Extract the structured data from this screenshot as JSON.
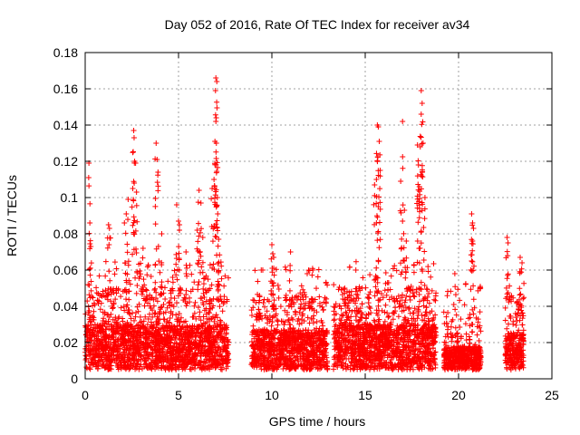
{
  "chart_data": {
    "type": "scatter",
    "title": "Day 052 of 2016, Rate Of TEC Index for receiver av34",
    "xlabel": "GPS time / hours",
    "ylabel": "ROTI / TECUs",
    "xlim": [
      0,
      25
    ],
    "ylim": [
      0,
      0.18
    ],
    "xticks": [
      0,
      5,
      10,
      15,
      20,
      25
    ],
    "xtick_labels": [
      "0",
      "5",
      "10",
      "15",
      "20",
      "25"
    ],
    "yticks": [
      0,
      0.02,
      0.04,
      0.06,
      0.08,
      0.1,
      0.12,
      0.14,
      0.16,
      0.18
    ],
    "ytick_labels": [
      "0",
      "0.02",
      "0.04",
      "0.06",
      "0.08",
      "0.1",
      "0.12",
      "0.14",
      "0.16",
      "0.18"
    ],
    "grid": true,
    "marker": "+",
    "color": "#ff0000",
    "segments": [
      {
        "x_start": 0.0,
        "x_end": 7.7,
        "base_max": 0.03
      },
      {
        "x_start": 8.9,
        "x_end": 13.0,
        "base_max": 0.027
      },
      {
        "x_start": 13.3,
        "x_end": 18.8,
        "base_max": 0.03
      },
      {
        "x_start": 19.2,
        "x_end": 21.2,
        "base_max": 0.018
      },
      {
        "x_start": 22.5,
        "x_end": 23.5,
        "base_max": 0.025
      }
    ],
    "peaks": [
      {
        "x": 0.2,
        "y": 0.119
      },
      {
        "x": 0.25,
        "y": 0.086
      },
      {
        "x": 0.3,
        "y": 0.073
      },
      {
        "x": 1.25,
        "y": 0.085
      },
      {
        "x": 1.3,
        "y": 0.083
      },
      {
        "x": 2.1,
        "y": 0.086
      },
      {
        "x": 2.2,
        "y": 0.091
      },
      {
        "x": 2.3,
        "y": 0.099
      },
      {
        "x": 2.6,
        "y": 0.137
      },
      {
        "x": 2.62,
        "y": 0.133
      },
      {
        "x": 2.65,
        "y": 0.12
      },
      {
        "x": 2.7,
        "y": 0.119
      },
      {
        "x": 2.55,
        "y": 0.105
      },
      {
        "x": 2.75,
        "y": 0.103
      },
      {
        "x": 3.1,
        "y": 0.072
      },
      {
        "x": 3.8,
        "y": 0.13
      },
      {
        "x": 3.85,
        "y": 0.121
      },
      {
        "x": 3.9,
        "y": 0.114
      },
      {
        "x": 4.1,
        "y": 0.08
      },
      {
        "x": 4.9,
        "y": 0.096
      },
      {
        "x": 5.0,
        "y": 0.087
      },
      {
        "x": 5.05,
        "y": 0.085
      },
      {
        "x": 5.4,
        "y": 0.07
      },
      {
        "x": 6.1,
        "y": 0.104
      },
      {
        "x": 6.2,
        "y": 0.097
      },
      {
        "x": 6.0,
        "y": 0.082
      },
      {
        "x": 6.3,
        "y": 0.078
      },
      {
        "x": 6.8,
        "y": 0.105
      },
      {
        "x": 6.9,
        "y": 0.11
      },
      {
        "x": 7.0,
        "y": 0.166
      },
      {
        "x": 7.05,
        "y": 0.164
      },
      {
        "x": 6.98,
        "y": 0.159
      },
      {
        "x": 7.02,
        "y": 0.144
      },
      {
        "x": 7.0,
        "y": 0.142
      },
      {
        "x": 6.95,
        "y": 0.131
      },
      {
        "x": 7.08,
        "y": 0.1
      },
      {
        "x": 7.1,
        "y": 0.091
      },
      {
        "x": 7.15,
        "y": 0.077
      },
      {
        "x": 10.0,
        "y": 0.074
      },
      {
        "x": 10.05,
        "y": 0.069
      },
      {
        "x": 10.1,
        "y": 0.067
      },
      {
        "x": 10.1,
        "y": 0.061
      },
      {
        "x": 11.0,
        "y": 0.07
      },
      {
        "x": 12.2,
        "y": 0.06
      },
      {
        "x": 13.9,
        "y": 0.05
      },
      {
        "x": 14.5,
        "y": 0.06
      },
      {
        "x": 15.5,
        "y": 0.107
      },
      {
        "x": 15.6,
        "y": 0.11
      },
      {
        "x": 15.7,
        "y": 0.139
      },
      {
        "x": 15.65,
        "y": 0.14
      },
      {
        "x": 15.75,
        "y": 0.131
      },
      {
        "x": 15.6,
        "y": 0.086
      },
      {
        "x": 15.7,
        "y": 0.095
      },
      {
        "x": 15.8,
        "y": 0.115
      },
      {
        "x": 16.9,
        "y": 0.109
      },
      {
        "x": 17.0,
        "y": 0.142
      },
      {
        "x": 17.1,
        "y": 0.093
      },
      {
        "x": 17.0,
        "y": 0.087
      },
      {
        "x": 17.2,
        "y": 0.076
      },
      {
        "x": 17.8,
        "y": 0.129
      },
      {
        "x": 17.85,
        "y": 0.118
      },
      {
        "x": 17.9,
        "y": 0.106
      },
      {
        "x": 18.0,
        "y": 0.159
      },
      {
        "x": 18.05,
        "y": 0.152
      },
      {
        "x": 18.0,
        "y": 0.146
      },
      {
        "x": 18.1,
        "y": 0.13
      },
      {
        "x": 17.95,
        "y": 0.128
      },
      {
        "x": 18.2,
        "y": 0.1
      },
      {
        "x": 19.8,
        "y": 0.058
      },
      {
        "x": 20.7,
        "y": 0.091
      },
      {
        "x": 20.75,
        "y": 0.086
      },
      {
        "x": 20.8,
        "y": 0.083
      },
      {
        "x": 20.7,
        "y": 0.065
      },
      {
        "x": 22.6,
        "y": 0.078
      },
      {
        "x": 22.65,
        "y": 0.075
      },
      {
        "x": 23.3,
        "y": 0.067
      },
      {
        "x": 23.4,
        "y": 0.064
      }
    ]
  }
}
